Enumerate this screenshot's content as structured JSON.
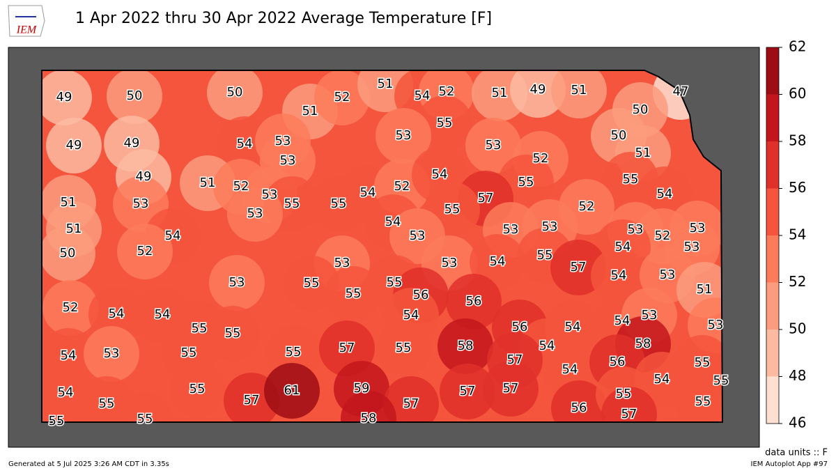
{
  "title": "1 Apr 2022 thru 30 Apr 2022 Average Temperature [F]",
  "logo": "IEM",
  "map": {
    "stations": [
      49,
      50,
      50,
      51,
      52,
      51,
      54,
      52,
      51,
      49,
      51,
      47,
      50,
      55,
      53,
      53,
      50,
      51,
      49,
      49,
      54,
      53,
      53,
      52,
      49,
      51,
      52,
      53,
      55,
      55,
      54,
      52,
      54,
      55,
      55,
      54,
      51,
      53,
      53,
      57,
      55,
      52,
      51,
      54,
      53,
      53,
      53,
      53,
      52,
      53,
      53,
      54,
      52,
      50,
      54,
      55,
      53,
      53,
      54,
      57,
      54,
      53,
      53,
      55,
      55,
      55,
      56,
      56,
      51,
      52,
      54,
      54,
      54,
      55,
      55,
      56,
      54,
      54,
      53,
      53,
      54,
      53,
      55,
      55,
      57,
      55,
      58,
      54,
      58,
      57,
      54,
      56,
      55,
      54,
      55,
      54,
      55,
      55,
      57,
      61,
      59,
      57,
      57,
      57,
      56,
      55,
      55,
      55,
      55,
      58,
      57
    ],
    "colorbar": {
      "levels": [
        46,
        48,
        50,
        52,
        54,
        56,
        58,
        60,
        62
      ],
      "colors": [
        "#fee0d2",
        "#fcbba1",
        "#fc9c7e",
        "#fb7b5b",
        "#f4553c",
        "#e0302a",
        "#c3161c",
        "#9e0d14"
      ]
    },
    "units": "data units :: F"
  },
  "footer": {
    "left": "Generated at 5 Jul 2025 3:26 AM CDT in 3.35s",
    "right": "IEM Autoplot App #97"
  }
}
